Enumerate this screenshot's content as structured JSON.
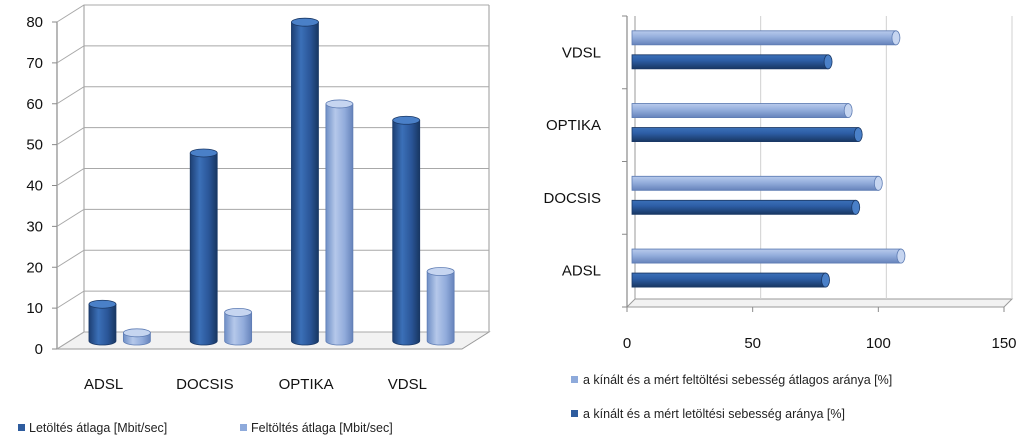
{
  "chart_data": [
    {
      "type": "bar",
      "orientation": "vertical",
      "style": "3d-cylinder",
      "categories": [
        "ADSL",
        "DOCSIS",
        "OPTIKA",
        "VDSL"
      ],
      "series": [
        {
          "name": "Letöltés átlaga [Mbit/sec]",
          "values": [
            9,
            46,
            78,
            54
          ],
          "color": "#2e5c9e"
        },
        {
          "name": "Feltöltés átlaga [Mbit/sec]",
          "values": [
            2,
            7,
            58,
            17
          ],
          "color": "#8eaadb"
        }
      ],
      "yticks": [
        "0",
        "10",
        "20",
        "30",
        "40",
        "50",
        "60",
        "70",
        "80"
      ],
      "ylim": [
        0,
        80
      ],
      "grid": true,
      "legend_position": "bottom"
    },
    {
      "type": "bar",
      "orientation": "horizontal",
      "style": "3d-cylinder",
      "categories": [
        "ADSL",
        "DOCSIS",
        "OPTIKA",
        "VDSL"
      ],
      "series": [
        {
          "name": "a kínált és a mért letöltési sebesség aránya [%]",
          "values": [
            79,
            91,
            92,
            80
          ],
          "color": "#2e5c9e"
        },
        {
          "name": "a kínált és a mért feltöltési sebesség átlagos aránya [%]",
          "values": [
            109,
            100,
            88,
            107
          ],
          "color": "#8eaadb"
        }
      ],
      "xticks": [
        "0",
        "50",
        "100",
        "150"
      ],
      "xlim": [
        0,
        150
      ],
      "grid": true,
      "legend_position": "bottom"
    }
  ]
}
